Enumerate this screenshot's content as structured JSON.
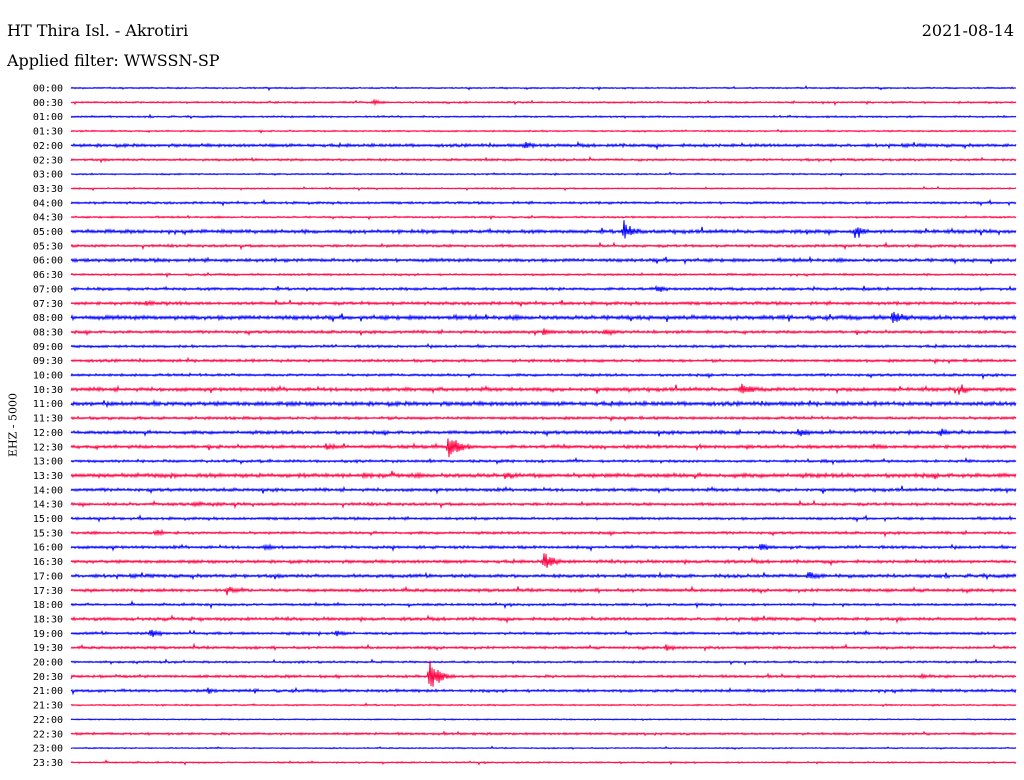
{
  "header": {
    "station": "HT Thira Isl. - Akrotiri",
    "filter": "Applied filter: WWSSN-SP",
    "date": "2021-08-14"
  },
  "chart_data": {
    "type": "line",
    "title": "HT Thira Isl. - Akrotiri",
    "subtitle": "Applied filter: WWSSN-SP",
    "date": "2021-08-14",
    "ylabel": "EHZ - 5000",
    "row_labels": [
      "00:00",
      "00:30",
      "01:00",
      "01:30",
      "02:00",
      "02:30",
      "03:00",
      "03:30",
      "04:00",
      "04:30",
      "05:00",
      "05:30",
      "06:00",
      "06:30",
      "07:00",
      "07:30",
      "08:00",
      "08:30",
      "09:00",
      "09:30",
      "10:00",
      "10:30",
      "11:00",
      "11:30",
      "12:00",
      "12:30",
      "13:00",
      "13:30",
      "14:00",
      "14:30",
      "15:00",
      "15:30",
      "16:00",
      "16:30",
      "17:00",
      "17:30",
      "18:00",
      "18:30",
      "19:00",
      "19:30",
      "20:00",
      "20:30",
      "21:00",
      "21:30",
      "22:00",
      "22:30",
      "23:00",
      "23:30"
    ],
    "colors": [
      "#0000ff",
      "#ff0040"
    ],
    "noise_amplitude": [
      0.6,
      0.7,
      0.7,
      0.6,
      1.2,
      0.9,
      0.6,
      0.6,
      0.9,
      0.7,
      1.4,
      1.0,
      1.3,
      0.8,
      1.1,
      1.2,
      1.6,
      1.1,
      1.0,
      1.1,
      1.0,
      1.4,
      1.6,
      1.1,
      1.3,
      1.3,
      1.0,
      1.6,
      1.2,
      1.1,
      1.0,
      1.0,
      1.1,
      1.2,
      1.3,
      1.2,
      0.9,
      1.2,
      1.0,
      1.0,
      0.8,
      1.0,
      1.1,
      0.6,
      0.5,
      0.9,
      0.5,
      0.6
    ],
    "events": [
      {
        "row": "00:30",
        "x": 0.32,
        "amplitude": 4
      },
      {
        "row": "02:00",
        "x": 0.48,
        "amplitude": 5
      },
      {
        "row": "05:00",
        "x": 0.585,
        "amplitude": 14
      },
      {
        "row": "05:00",
        "x": 0.83,
        "amplitude": 10
      },
      {
        "row": "07:00",
        "x": 0.62,
        "amplitude": 5
      },
      {
        "row": "07:30",
        "x": 0.08,
        "amplitude": 4
      },
      {
        "row": "08:00",
        "x": 0.87,
        "amplitude": 12
      },
      {
        "row": "08:30",
        "x": 0.5,
        "amplitude": 5
      },
      {
        "row": "08:30",
        "x": 0.565,
        "amplitude": 5
      },
      {
        "row": "10:30",
        "x": 0.71,
        "amplitude": 10
      },
      {
        "row": "10:30",
        "x": 0.94,
        "amplitude": 7
      },
      {
        "row": "12:00",
        "x": 0.77,
        "amplitude": 6
      },
      {
        "row": "12:00",
        "x": 0.92,
        "amplitude": 6
      },
      {
        "row": "12:30",
        "x": 0.27,
        "amplitude": 5
      },
      {
        "row": "12:30",
        "x": 0.4,
        "amplitude": 20
      },
      {
        "row": "12:30",
        "x": 0.85,
        "amplitude": 4
      },
      {
        "row": "13:30",
        "x": 0.31,
        "amplitude": 5
      },
      {
        "row": "13:30",
        "x": 0.46,
        "amplitude": 6
      },
      {
        "row": "14:30",
        "x": 0.13,
        "amplitude": 5
      },
      {
        "row": "15:30",
        "x": 0.09,
        "amplitude": 5
      },
      {
        "row": "16:00",
        "x": 0.205,
        "amplitude": 5
      },
      {
        "row": "16:00",
        "x": 0.73,
        "amplitude": 7
      },
      {
        "row": "16:30",
        "x": 0.5,
        "amplitude": 12
      },
      {
        "row": "17:00",
        "x": 0.78,
        "amplitude": 6
      },
      {
        "row": "17:30",
        "x": 0.165,
        "amplitude": 6
      },
      {
        "row": "19:00",
        "x": 0.085,
        "amplitude": 6
      },
      {
        "row": "19:00",
        "x": 0.28,
        "amplitude": 4
      },
      {
        "row": "19:30",
        "x": 0.63,
        "amplitude": 5
      },
      {
        "row": "20:30",
        "x": 0.38,
        "amplitude": 18
      },
      {
        "row": "20:30",
        "x": 0.9,
        "amplitude": 4
      },
      {
        "row": "21:00",
        "x": 0.145,
        "amplitude": 4
      }
    ]
  }
}
